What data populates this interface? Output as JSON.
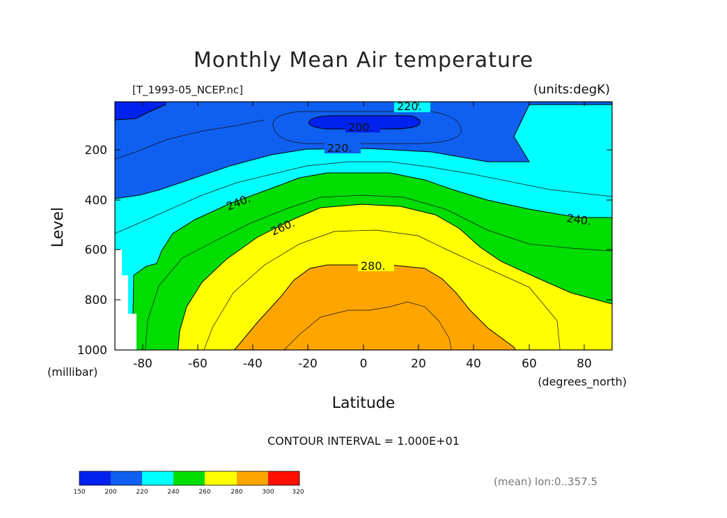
{
  "chart_data": {
    "type": "contour",
    "title": "Monthly Mean Air temperature",
    "file_label": "[T_1993-05_NCEP.nc]",
    "units_label": "(units:degK)",
    "xlabel": "Latitude",
    "x_units": "(degrees_north)",
    "ylabel": "Level",
    "y_units": "(millibar)",
    "xlim": [
      -90,
      90
    ],
    "ylim": [
      1000,
      10
    ],
    "x_ticks": [
      "-80",
      "-60",
      "-40",
      "-20",
      "0",
      "20",
      "40",
      "60",
      "80"
    ],
    "y_ticks": [
      "200",
      "400",
      "600",
      "800",
      "1000"
    ],
    "contour_interval_text": "CONTOUR INTERVAL = 1.000E+01",
    "contour_labels": [
      "220.",
      "200.",
      "220.",
      "240.",
      "260.",
      "240.",
      "280."
    ],
    "mean_note": "(mean) lon:0..357.5",
    "colorbar": {
      "levels": [
        "150",
        "200",
        "220",
        "240",
        "260",
        "280",
        "300",
        "320"
      ],
      "colors": [
        "#0022ee",
        "#0f5ff0",
        "#00ffff",
        "#00dd00",
        "#ffff00",
        "#ffa500",
        "#ff1000"
      ]
    },
    "band_colors": {
      "below_200": "#0022ee",
      "200_220": "#0f5ff0",
      "220_240": "#00ffff",
      "240_260": "#00dd00",
      "260_280": "#ffff00",
      "280_300": "#ffa500"
    }
  }
}
